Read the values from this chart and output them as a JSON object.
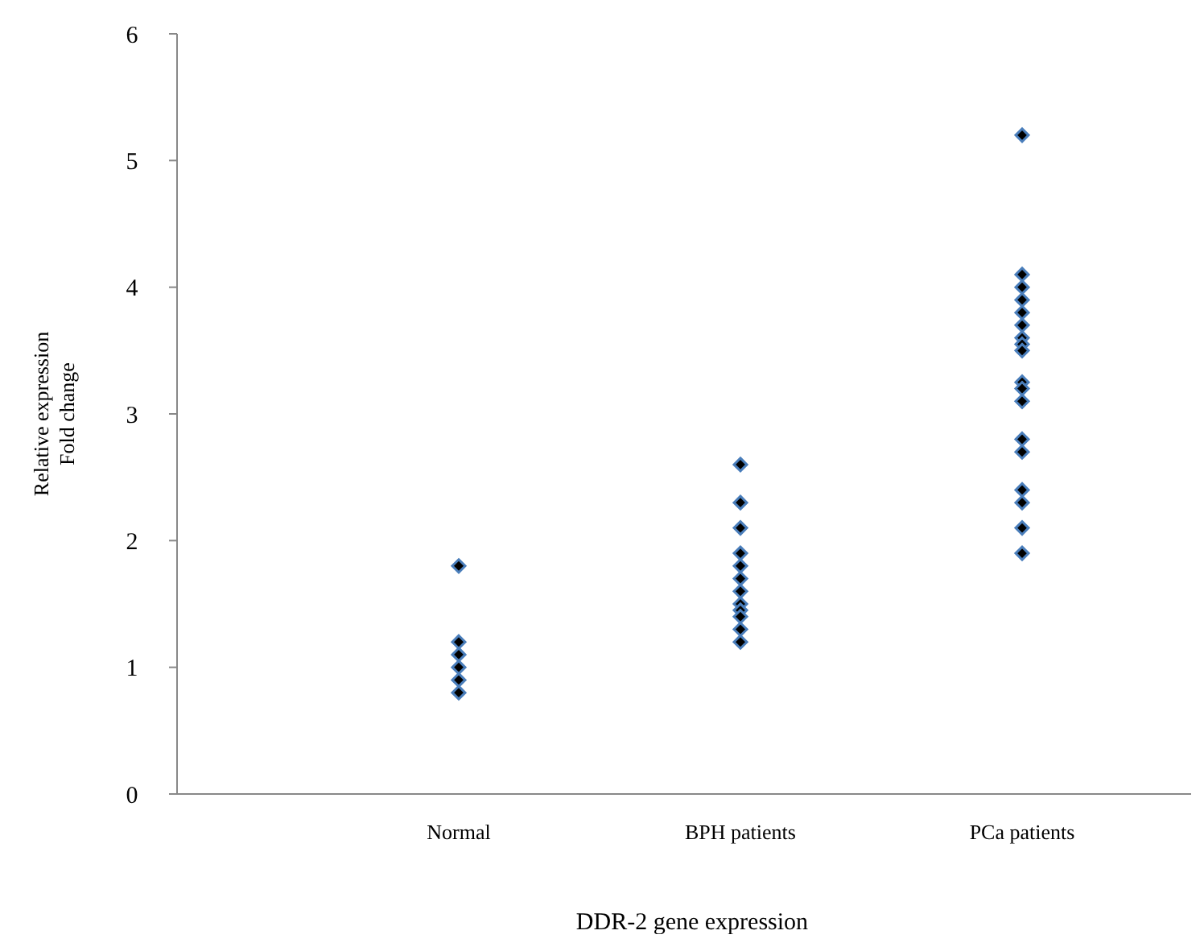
{
  "chart_data": {
    "type": "scatter",
    "xlabel": "DDR-2 gene expression",
    "ylabel": "Relative expression\nFold change",
    "categories": [
      "Normal",
      "BPH patients",
      "PCa patients"
    ],
    "series": [
      {
        "color": "#4a7ebb",
        "x": [
          "Normal",
          "Normal",
          "Normal",
          "Normal",
          "Normal",
          "Normal"
        ],
        "values": [
          1.8,
          1.2,
          1.1,
          1.0,
          0.9,
          0.8
        ]
      },
      {
        "color": "#4a7ebb",
        "x": [
          "BPH patients",
          "BPH patients",
          "BPH patients",
          "BPH patients",
          "BPH patients",
          "BPH patients",
          "BPH patients",
          "BPH patients",
          "BPH patients",
          "BPH patients",
          "BPH patients",
          "BPH patients"
        ],
        "values": [
          2.6,
          2.3,
          2.1,
          1.9,
          1.8,
          1.7,
          1.6,
          1.5,
          1.45,
          1.4,
          1.3,
          1.2
        ]
      },
      {
        "color": "#4a7ebb",
        "x": [
          "PCa patients",
          "PCa patients",
          "PCa patients",
          "PCa patients",
          "PCa patients",
          "PCa patients",
          "PCa patients",
          "PCa patients",
          "PCa patients",
          "PCa patients",
          "PCa patients",
          "PCa patients",
          "PCa patients",
          "PCa patients",
          "PCa patients",
          "PCa patients",
          "PCa patients",
          "PCa patients"
        ],
        "values": [
          5.2,
          4.1,
          4.0,
          3.9,
          3.8,
          3.7,
          3.6,
          3.55,
          3.5,
          3.25,
          3.2,
          3.1,
          2.8,
          2.7,
          2.4,
          2.3,
          2.1,
          1.9
        ]
      }
    ],
    "ylim": [
      0,
      6
    ],
    "yticks": [
      0,
      1,
      2,
      3,
      4,
      5,
      6
    ],
    "grid": false,
    "marker": "diamond"
  }
}
